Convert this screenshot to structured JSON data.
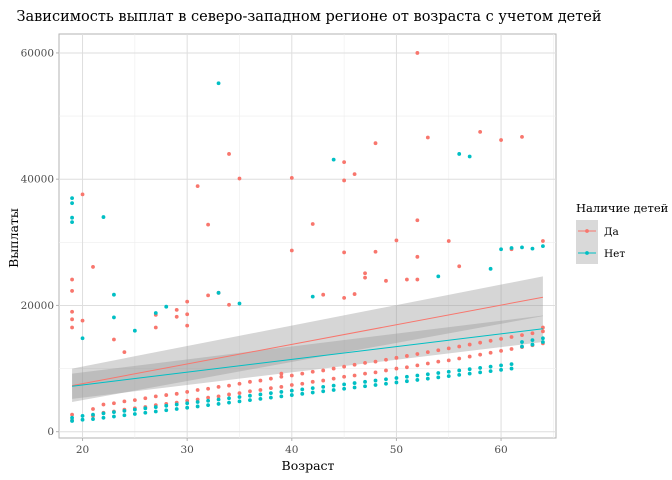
{
  "chart_data": {
    "type": "scatter",
    "title": "Зависимость выплат в северо-западном регионе от возраста с учетом детей",
    "xlabel": "Возраст",
    "ylabel": "Выплаты",
    "xlim": [
      17.75,
      65.25
    ],
    "ylim": [
      -1000,
      63000
    ],
    "x_ticks": [
      20,
      30,
      40,
      50,
      60
    ],
    "x_tick_labels": [
      "20",
      "30",
      "40",
      "50",
      "60"
    ],
    "y_ticks": [
      0,
      20000,
      40000,
      60000
    ],
    "y_tick_labels": [
      "0",
      "20000",
      "40000",
      "60000"
    ],
    "grid": true,
    "legend": {
      "title": "Наличие детей",
      "position": "right"
    },
    "series": [
      {
        "name": "Да",
        "color": "#F8766D",
        "points": [
          [
            19,
            1800
          ],
          [
            19,
            2700
          ],
          [
            19,
            16500
          ],
          [
            19,
            17800
          ],
          [
            19,
            19000
          ],
          [
            19,
            22300
          ],
          [
            19,
            24100
          ],
          [
            20,
            17600
          ],
          [
            20,
            37600
          ],
          [
            21,
            2500
          ],
          [
            21,
            3600
          ],
          [
            21,
            26100
          ],
          [
            22,
            3000
          ],
          [
            22,
            4300
          ],
          [
            23,
            3200
          ],
          [
            23,
            4500
          ],
          [
            23,
            14600
          ],
          [
            24,
            3500
          ],
          [
            24,
            4800
          ],
          [
            24,
            12600
          ],
          [
            25,
            3700
          ],
          [
            25,
            5000
          ],
          [
            26,
            3900
          ],
          [
            26,
            5300
          ],
          [
            27,
            4200
          ],
          [
            27,
            5600
          ],
          [
            27,
            16500
          ],
          [
            27,
            18500
          ],
          [
            28,
            4400
          ],
          [
            28,
            5800
          ],
          [
            29,
            4600
          ],
          [
            29,
            6000
          ],
          [
            29,
            18200
          ],
          [
            29,
            19300
          ],
          [
            30,
            4900
          ],
          [
            30,
            6300
          ],
          [
            30,
            16800
          ],
          [
            30,
            18600
          ],
          [
            30,
            20600
          ],
          [
            31,
            5100
          ],
          [
            31,
            6600
          ],
          [
            31,
            38900
          ],
          [
            32,
            5400
          ],
          [
            32,
            6800
          ],
          [
            32,
            21600
          ],
          [
            32,
            32800
          ],
          [
            33,
            5600
          ],
          [
            33,
            7100
          ],
          [
            33,
            22000
          ],
          [
            34,
            5900
          ],
          [
            34,
            7300
          ],
          [
            34,
            20100
          ],
          [
            34,
            44000
          ],
          [
            35,
            6100
          ],
          [
            35,
            7600
          ],
          [
            35,
            40100
          ],
          [
            36,
            6400
          ],
          [
            36,
            7900
          ],
          [
            37,
            6600
          ],
          [
            37,
            8100
          ],
          [
            38,
            6900
          ],
          [
            38,
            8400
          ],
          [
            39,
            7100
          ],
          [
            39,
            8700
          ],
          [
            39,
            9200
          ],
          [
            40,
            7400
          ],
          [
            40,
            8900
          ],
          [
            40,
            28700
          ],
          [
            40,
            40200
          ],
          [
            41,
            7600
          ],
          [
            41,
            9200
          ],
          [
            42,
            7900
          ],
          [
            42,
            9500
          ],
          [
            42,
            32900
          ],
          [
            43,
            8100
          ],
          [
            43,
            9700
          ],
          [
            43,
            21700
          ],
          [
            44,
            8400
          ],
          [
            44,
            10000
          ],
          [
            45,
            8700
          ],
          [
            45,
            10300
          ],
          [
            45,
            21200
          ],
          [
            45,
            28400
          ],
          [
            45,
            39800
          ],
          [
            45,
            42700
          ],
          [
            46,
            8900
          ],
          [
            46,
            10600
          ],
          [
            46,
            21800
          ],
          [
            46,
            40800
          ],
          [
            47,
            9200
          ],
          [
            47,
            10900
          ],
          [
            47,
            24400
          ],
          [
            47,
            25100
          ],
          [
            48,
            9400
          ],
          [
            48,
            11100
          ],
          [
            48,
            28500
          ],
          [
            48,
            45700
          ],
          [
            49,
            9700
          ],
          [
            49,
            11400
          ],
          [
            49,
            23900
          ],
          [
            50,
            10000
          ],
          [
            50,
            11700
          ],
          [
            50,
            30300
          ],
          [
            51,
            10200
          ],
          [
            51,
            12000
          ],
          [
            51,
            24100
          ],
          [
            52,
            10500
          ],
          [
            52,
            12300
          ],
          [
            52,
            24100
          ],
          [
            52,
            27700
          ],
          [
            52,
            33500
          ],
          [
            52,
            60000
          ],
          [
            53,
            10800
          ],
          [
            53,
            12600
          ],
          [
            53,
            46600
          ],
          [
            54,
            11100
          ],
          [
            54,
            12900
          ],
          [
            55,
            11300
          ],
          [
            55,
            13200
          ],
          [
            55,
            30200
          ],
          [
            56,
            11600
          ],
          [
            56,
            13500
          ],
          [
            56,
            26200
          ],
          [
            57,
            11900
          ],
          [
            57,
            13800
          ],
          [
            58,
            12200
          ],
          [
            58,
            14100
          ],
          [
            58,
            47500
          ],
          [
            59,
            12500
          ],
          [
            59,
            14400
          ],
          [
            60,
            12800
          ],
          [
            60,
            14700
          ],
          [
            60,
            46200
          ],
          [
            61,
            13100
          ],
          [
            61,
            15000
          ],
          [
            61,
            28900
          ],
          [
            62,
            13400
          ],
          [
            62,
            15300
          ],
          [
            62,
            46700
          ],
          [
            63,
            13700
          ],
          [
            63,
            15600
          ],
          [
            64,
            14000
          ],
          [
            64,
            15900
          ],
          [
            64,
            16500
          ],
          [
            64,
            30200
          ]
        ],
        "trend": {
          "x_start": 19,
          "y_start": 7300,
          "x_end": 64,
          "y_end": 21300
        },
        "ci_band": {
          "lower_start": 4700,
          "upper_start": 10000,
          "lower_end": 18300,
          "upper_end": 24600
        }
      },
      {
        "name": "Нет",
        "color": "#00BFC4",
        "points": [
          [
            19,
            1700
          ],
          [
            19,
            2200
          ],
          [
            19,
            33200
          ],
          [
            19,
            33900
          ],
          [
            19,
            36200
          ],
          [
            19,
            37000
          ],
          [
            20,
            14800
          ],
          [
            20,
            1900
          ],
          [
            20,
            2500
          ],
          [
            21,
            2000
          ],
          [
            21,
            2700
          ],
          [
            22,
            34000
          ],
          [
            22,
            2200
          ],
          [
            22,
            2900
          ],
          [
            23,
            18100
          ],
          [
            23,
            21700
          ],
          [
            23,
            2400
          ],
          [
            23,
            3100
          ],
          [
            24,
            2600
          ],
          [
            24,
            3300
          ],
          [
            25,
            16000
          ],
          [
            25,
            2800
          ],
          [
            25,
            3500
          ],
          [
            26,
            3000
          ],
          [
            26,
            3700
          ],
          [
            27,
            18800
          ],
          [
            27,
            3200
          ],
          [
            27,
            3900
          ],
          [
            28,
            19800
          ],
          [
            28,
            3400
          ],
          [
            28,
            4100
          ],
          [
            29,
            3600
          ],
          [
            29,
            4300
          ],
          [
            30,
            3800
          ],
          [
            30,
            4500
          ],
          [
            31,
            4000
          ],
          [
            31,
            4700
          ],
          [
            32,
            4200
          ],
          [
            32,
            4900
          ],
          [
            33,
            22000
          ],
          [
            33,
            55200
          ],
          [
            33,
            4400
          ],
          [
            33,
            5100
          ],
          [
            34,
            4600
          ],
          [
            34,
            5300
          ],
          [
            35,
            20300
          ],
          [
            35,
            4800
          ],
          [
            35,
            5500
          ],
          [
            36,
            5000
          ],
          [
            36,
            5700
          ],
          [
            37,
            5200
          ],
          [
            37,
            5900
          ],
          [
            38,
            5400
          ],
          [
            38,
            6100
          ],
          [
            39,
            5600
          ],
          [
            39,
            6300
          ],
          [
            40,
            5800
          ],
          [
            40,
            6500
          ],
          [
            41,
            6000
          ],
          [
            41,
            6700
          ],
          [
            42,
            21400
          ],
          [
            42,
            6200
          ],
          [
            42,
            6900
          ],
          [
            43,
            6400
          ],
          [
            43,
            7100
          ],
          [
            44,
            43100
          ],
          [
            44,
            6600
          ],
          [
            44,
            7300
          ],
          [
            45,
            6800
          ],
          [
            45,
            7500
          ],
          [
            46,
            7000
          ],
          [
            46,
            7700
          ],
          [
            47,
            7200
          ],
          [
            47,
            7900
          ],
          [
            48,
            7400
          ],
          [
            48,
            8100
          ],
          [
            49,
            7600
          ],
          [
            49,
            8300
          ],
          [
            50,
            7800
          ],
          [
            50,
            8500
          ],
          [
            51,
            8000
          ],
          [
            51,
            8700
          ],
          [
            52,
            8200
          ],
          [
            52,
            8900
          ],
          [
            53,
            8400
          ],
          [
            53,
            9100
          ],
          [
            54,
            24600
          ],
          [
            54,
            8600
          ],
          [
            54,
            9300
          ],
          [
            55,
            8800
          ],
          [
            55,
            9500
          ],
          [
            56,
            44000
          ],
          [
            56,
            9000
          ],
          [
            56,
            9700
          ],
          [
            57,
            43600
          ],
          [
            57,
            9200
          ],
          [
            57,
            9900
          ],
          [
            58,
            9400
          ],
          [
            58,
            10100
          ],
          [
            59,
            25800
          ],
          [
            59,
            9600
          ],
          [
            59,
            10300
          ],
          [
            60,
            28900
          ],
          [
            60,
            9800
          ],
          [
            60,
            10500
          ],
          [
            61,
            29100
          ],
          [
            61,
            10000
          ],
          [
            61,
            10700
          ],
          [
            62,
            29200
          ],
          [
            62,
            13500
          ],
          [
            62,
            14200
          ],
          [
            63,
            29000
          ],
          [
            63,
            13800
          ],
          [
            63,
            14500
          ],
          [
            64,
            29400
          ],
          [
            64,
            14200
          ],
          [
            64,
            14800
          ]
        ],
        "trend": {
          "x_start": 19,
          "y_start": 7200,
          "x_end": 64,
          "y_end": 16300
        },
        "ci_band": {
          "lower_start": 5200,
          "upper_start": 9200,
          "lower_end": 14200,
          "upper_end": 18400
        }
      }
    ]
  }
}
